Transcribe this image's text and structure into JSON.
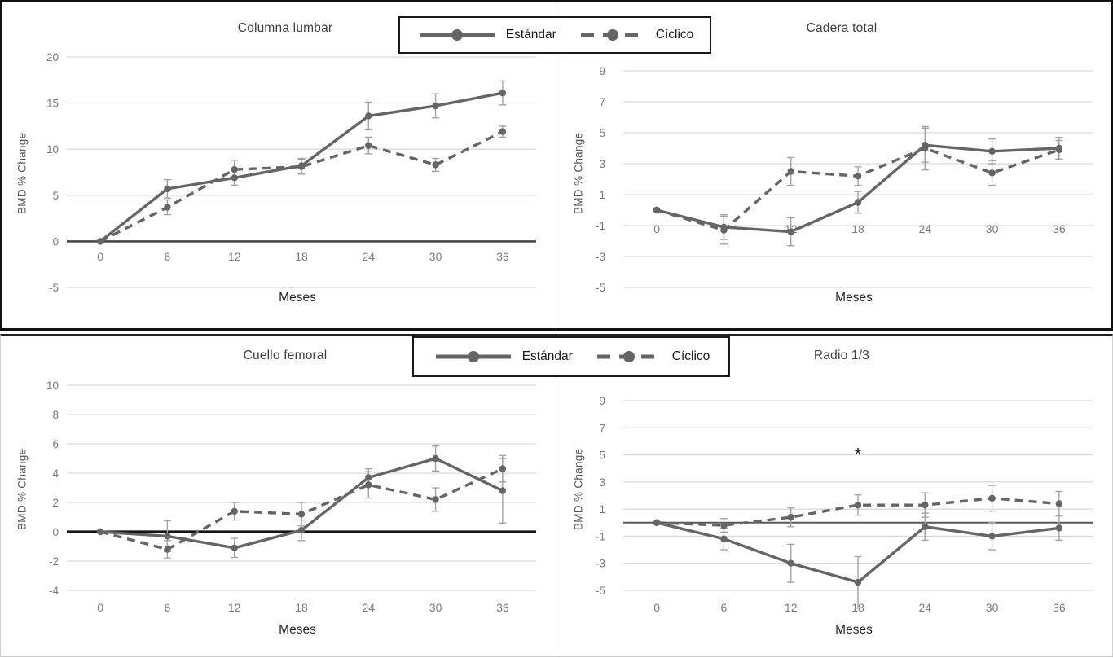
{
  "figure": {
    "y_axis_label": "BMD % Change",
    "x_axis_label": "Meses"
  },
  "legend": {
    "items": [
      {
        "label": "Estándar",
        "style": "solid"
      },
      {
        "label": "Cíclico",
        "style": "dashed"
      }
    ]
  },
  "colors": {
    "series": "#656565",
    "error_bar": "#a3a3a3",
    "gridline": "#d9d9d9",
    "tick_label": "#7a7a7a",
    "title": "#3f3f3f",
    "legend_border": "#1a1a1a"
  },
  "chart_data": [
    {
      "id": "columna-lumbar",
      "type": "line",
      "title": "Columna lumbar",
      "xlabel": "Meses",
      "ylabel": "BMD % Change",
      "categories": [
        0,
        6,
        12,
        18,
        24,
        30,
        36
      ],
      "y_ticks": [
        20,
        15,
        10,
        5,
        0,
        -5
      ],
      "ylim": [
        -5,
        20
      ],
      "grid": true,
      "series": [
        {
          "name": "Estándar",
          "style": "solid",
          "values": [
            0,
            5.7,
            6.9,
            8.2,
            13.6,
            14.7,
            16.1
          ],
          "errors": [
            0,
            1.0,
            0.8,
            0.8,
            1.5,
            1.3,
            1.3
          ]
        },
        {
          "name": "Cíclico",
          "style": "dashed",
          "values": [
            0,
            3.7,
            7.8,
            8.1,
            10.4,
            8.3,
            11.9
          ],
          "errors": [
            0,
            0.8,
            1.0,
            0.8,
            0.9,
            0.7,
            0.6
          ]
        }
      ],
      "annotations": []
    },
    {
      "id": "cadera-total",
      "type": "line",
      "title": "Cadera total",
      "xlabel": "Meses",
      "ylabel": "BMD % Change",
      "categories": [
        0,
        6,
        12,
        18,
        24,
        30,
        36
      ],
      "y_ticks": [
        9,
        7,
        5,
        3,
        1,
        -1,
        -3,
        -5
      ],
      "ylim": [
        -5,
        9
      ],
      "grid": true,
      "series": [
        {
          "name": "Estándar",
          "style": "solid",
          "values": [
            0,
            -1.1,
            -1.4,
            0.5,
            4.2,
            3.8,
            4.0
          ],
          "errors": [
            0,
            0.8,
            0.9,
            0.7,
            1.1,
            0.8,
            0.7
          ]
        },
        {
          "name": "Cíclico",
          "style": "dashed",
          "values": [
            0,
            -1.3,
            2.5,
            2.2,
            4.0,
            2.4,
            3.9
          ],
          "errors": [
            0,
            0.9,
            0.9,
            0.6,
            1.4,
            0.8,
            0.6
          ]
        }
      ],
      "annotations": []
    },
    {
      "id": "cuello-femoral",
      "type": "line",
      "title": "Cuello femoral",
      "xlabel": "Meses",
      "ylabel": "BMD % Change",
      "categories": [
        0,
        6,
        12,
        18,
        24,
        30,
        36
      ],
      "y_ticks": [
        10,
        8,
        6,
        4,
        2,
        0,
        -2,
        -4
      ],
      "ylim": [
        -4,
        10
      ],
      "grid": true,
      "series": [
        {
          "name": "Estándar",
          "style": "solid",
          "values": [
            0,
            -0.3,
            -1.1,
            0.1,
            3.7,
            5.0,
            2.8
          ],
          "errors": [
            0,
            1.05,
            0.65,
            0.7,
            0.6,
            0.85,
            2.2
          ]
        },
        {
          "name": "Cíclico",
          "style": "dashed",
          "values": [
            0,
            -1.2,
            1.4,
            1.2,
            3.2,
            2.2,
            4.3
          ],
          "errors": [
            0,
            0.6,
            0.6,
            0.8,
            0.9,
            0.8,
            0.9
          ]
        }
      ],
      "annotations": []
    },
    {
      "id": "radio-1-3",
      "type": "line",
      "title": "Radio 1/3",
      "xlabel": "Meses",
      "ylabel": "BMD % Change",
      "categories": [
        0,
        6,
        12,
        18,
        24,
        30,
        36
      ],
      "y_ticks": [
        9,
        7,
        5,
        3,
        1,
        -1,
        -3,
        -5
      ],
      "ylim": [
        -5,
        9
      ],
      "grid": true,
      "series": [
        {
          "name": "Estándar",
          "style": "solid",
          "values": [
            0,
            -1.2,
            -3.0,
            -4.4,
            -0.3,
            -1.0,
            -0.4
          ],
          "errors": [
            0,
            0.8,
            1.4,
            1.9,
            1.0,
            1.0,
            0.9
          ]
        },
        {
          "name": "Cíclico",
          "style": "dashed",
          "values": [
            0,
            -0.2,
            0.4,
            1.3,
            1.3,
            1.8,
            1.4
          ],
          "errors": [
            0,
            0.5,
            0.7,
            0.75,
            0.9,
            0.95,
            0.9
          ]
        }
      ],
      "annotations": [
        {
          "text": "*",
          "x": 18,
          "y": 5
        }
      ]
    }
  ]
}
